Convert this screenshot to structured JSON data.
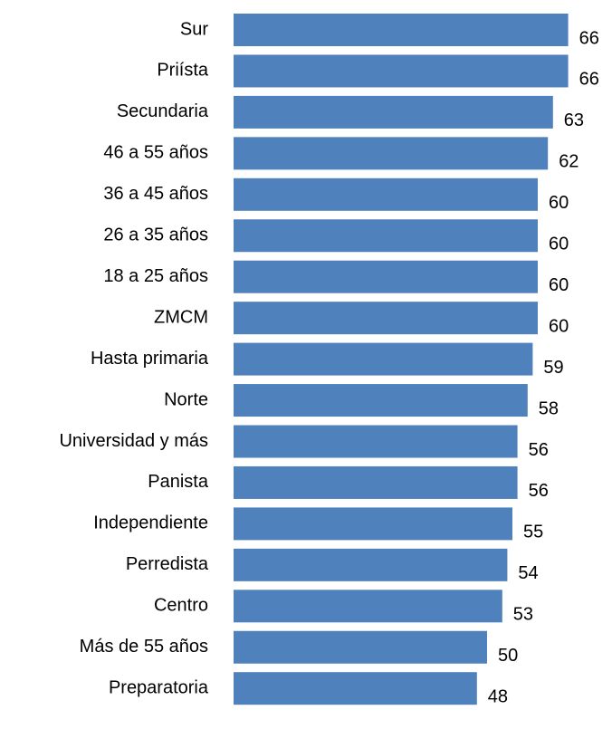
{
  "chart_data": {
    "type": "bar",
    "orientation": "horizontal",
    "color": "#4f81bd",
    "categories": [
      "Sur",
      "Priísta",
      "Secundaria",
      "46 a 55 años",
      "36 a 45 años",
      "26 a 35 años",
      "18 a 25 años",
      "ZMCM",
      "Hasta primaria",
      "Norte",
      "Universidad y más",
      "Panista",
      "Independiente",
      "Perredista",
      "Centro",
      "Más de 55 años",
      "Preparatoria"
    ],
    "values": [
      66,
      66,
      63,
      62,
      60,
      60,
      60,
      60,
      59,
      58,
      56,
      56,
      55,
      54,
      53,
      50,
      48
    ]
  }
}
